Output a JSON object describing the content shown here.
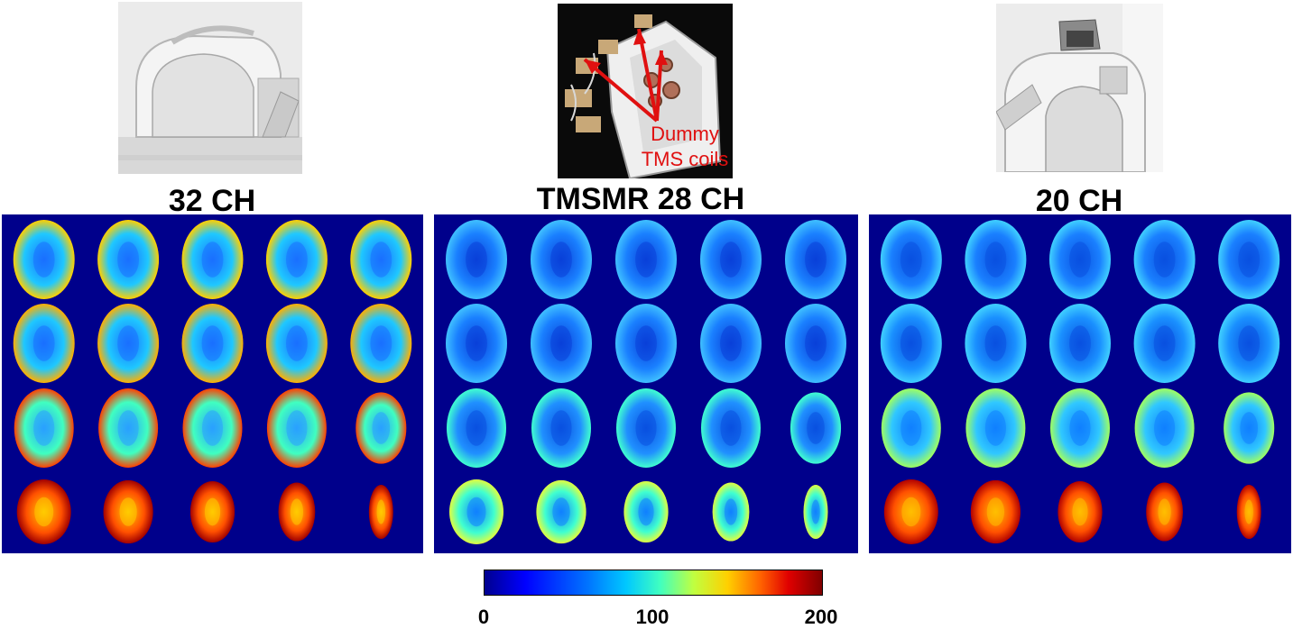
{
  "panels": [
    {
      "title": "32 CH",
      "photo_icon": "head-coil-photo"
    },
    {
      "title": "TMSMR 28 CH",
      "photo_icon": "tms-coil-array-photo",
      "annotation": [
        "Dummy",
        "TMS coils"
      ],
      "annotation_color": "#e01010"
    },
    {
      "title": "20 CH",
      "photo_icon": "head-coil-photo"
    }
  ],
  "colorbar": {
    "ticks": [
      "0",
      "100",
      "200"
    ],
    "min": 0,
    "max": 200
  },
  "map_background": "#00008b"
}
